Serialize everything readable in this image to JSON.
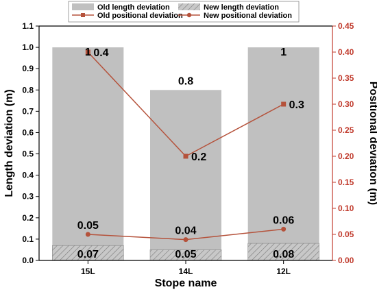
{
  "chart_data": {
    "type": "bar",
    "categories": [
      "15L",
      "14L",
      "12L"
    ],
    "xlabel": "Stope name",
    "ylabel_left": "Length deviation (m)",
    "ylabel_right": "Positional deviation (m)",
    "ylim_left": [
      0,
      1.1
    ],
    "ylim_right": [
      0,
      0.45
    ],
    "yticks_left": [
      "0.0",
      "0.1",
      "0.2",
      "0.3",
      "0.4",
      "0.5",
      "0.6",
      "0.7",
      "0.8",
      "0.9",
      "1.0",
      "1.1"
    ],
    "yticks_right": [
      "0.00",
      "0.05",
      "0.10",
      "0.15",
      "0.20",
      "0.25",
      "0.30",
      "0.35",
      "0.40",
      "0.45"
    ],
    "grid": false,
    "legend_position": "top",
    "series": [
      {
        "name": "Old length deviation",
        "kind": "bar",
        "axis": "left",
        "values": [
          1,
          0.8,
          1
        ],
        "labels": [
          "1",
          "0.8",
          "1"
        ],
        "color": "#c0c0c0"
      },
      {
        "name": "New length deviation",
        "kind": "bar-hatched",
        "axis": "left",
        "values": [
          0.07,
          0.05,
          0.08
        ],
        "labels": [
          "0.07",
          "0.05",
          "0.08"
        ],
        "color": "#a9a9a9"
      },
      {
        "name": "Old positional deviation",
        "kind": "line-square",
        "axis": "right",
        "values": [
          0.4,
          0.2,
          0.3
        ],
        "labels": [
          "0.4",
          "0.2",
          "0.3"
        ],
        "color": "#b5523b"
      },
      {
        "name": "New positional deviation",
        "kind": "line-circle",
        "axis": "right",
        "values": [
          0.05,
          0.04,
          0.06
        ],
        "labels": [
          "0.05",
          "0.04",
          "0.06"
        ],
        "color": "#b5523b"
      }
    ]
  }
}
